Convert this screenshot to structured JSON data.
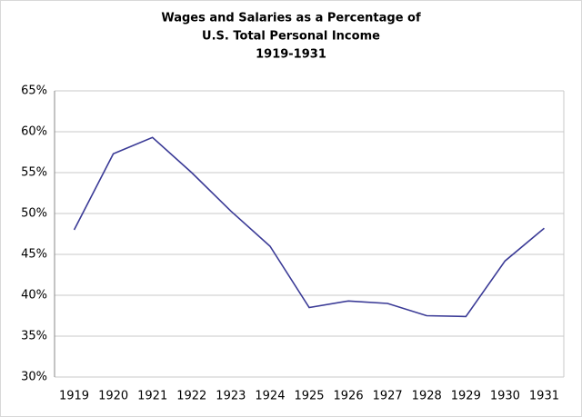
{
  "chart_data": {
    "type": "line",
    "title": [
      "Wages and Salaries as a Percentage of",
      "U.S. Total Personal Income",
      "1919-1931"
    ],
    "categories": [
      "1919",
      "1920",
      "1921",
      "1922",
      "1923",
      "1924",
      "1925",
      "1926",
      "1927",
      "1928",
      "1929",
      "1930",
      "1931"
    ],
    "values": [
      48,
      57.3,
      59.3,
      55,
      50.3,
      46,
      38.5,
      39.3,
      39,
      37.5,
      37.4,
      44.2,
      48.2
    ],
    "color": "#3a3a96",
    "ylim": [
      30,
      65
    ],
    "yticks": [
      {
        "value": 30,
        "label": "30%"
      },
      {
        "value": 35,
        "label": "35%"
      },
      {
        "value": 40,
        "label": "40%"
      },
      {
        "value": 45,
        "label": "45%"
      },
      {
        "value": 50,
        "label": "50%"
      },
      {
        "value": 55,
        "label": "55%"
      },
      {
        "value": 60,
        "label": "60%"
      },
      {
        "value": 65,
        "label": "65%"
      }
    ],
    "grid": true
  }
}
